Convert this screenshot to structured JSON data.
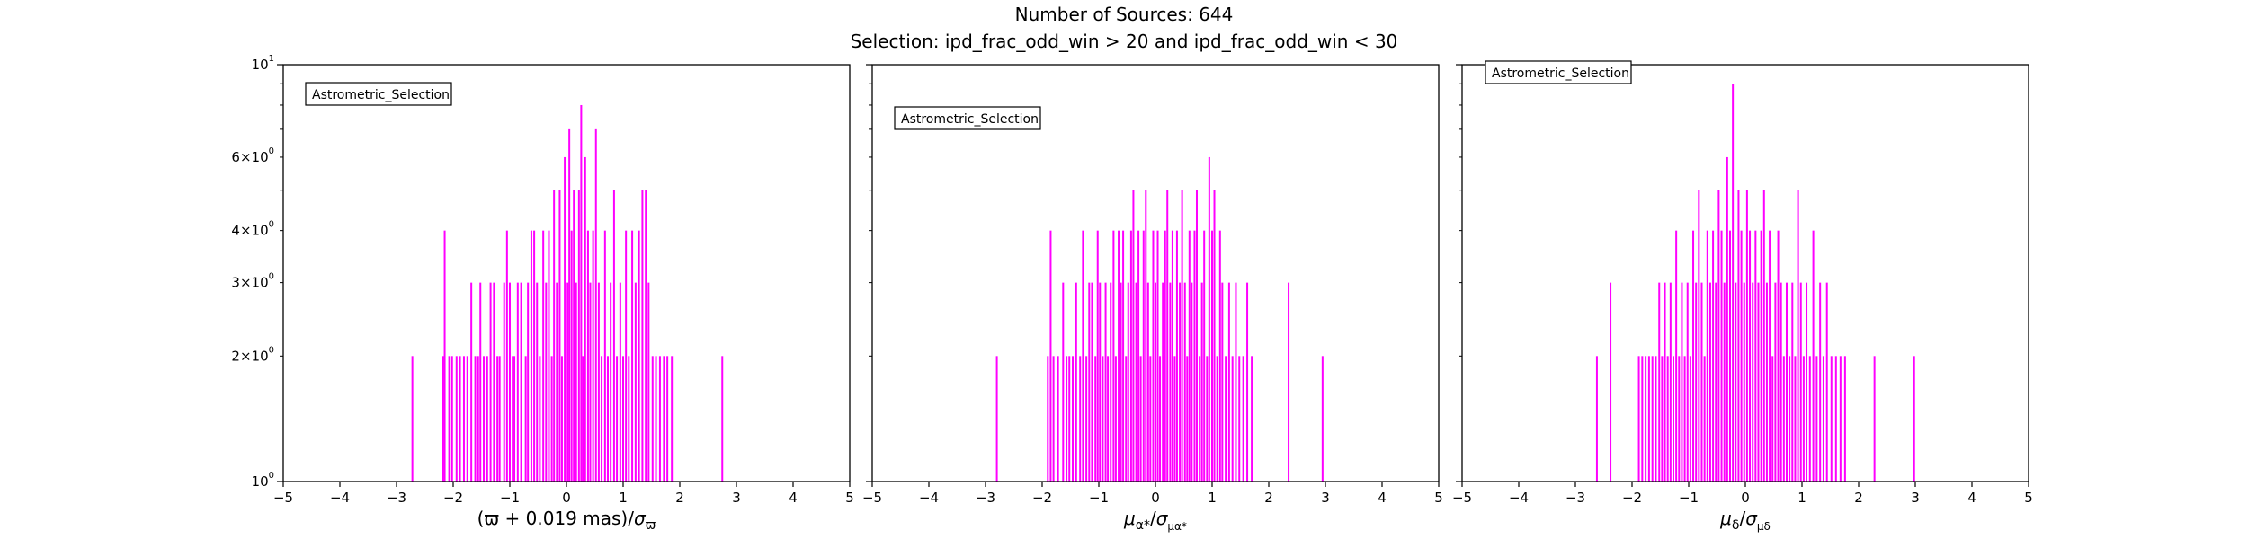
{
  "suptitle": {
    "line1": "Number of Sources: 644",
    "line2": "Selection: ipd_frac_odd_win > 20 and ipd_frac_odd_win < 30"
  },
  "colors": {
    "bars": "#ff00ff",
    "axes": "#000000",
    "background": "#ffffff"
  },
  "chart_data": [
    {
      "type": "bar",
      "panel": "parallax",
      "xlabel": "(ϖ + 0.019 mas)/σϖ",
      "ylabel": "",
      "xlim": [
        -5,
        5
      ],
      "ylim": [
        1,
        10
      ],
      "yscale": "log",
      "legend": {
        "text": "Astrometric_Selection",
        "placement": "upper-left"
      },
      "x_ticks": [
        "−5",
        "−4",
        "−3",
        "−2",
        "−1",
        "0",
        "1",
        "2",
        "3",
        "4",
        "5"
      ],
      "y_ticks": [
        "10^0",
        "2×10^0",
        "3×10^0",
        "4×10^0",
        "6×10^0",
        "10^1"
      ],
      "bars": [
        [
          -2.72,
          2
        ],
        [
          -2.18,
          2
        ],
        [
          -2.15,
          4
        ],
        [
          -2.07,
          2
        ],
        [
          -2.02,
          2
        ],
        [
          -1.94,
          2
        ],
        [
          -1.88,
          2
        ],
        [
          -1.81,
          2
        ],
        [
          -1.75,
          2
        ],
        [
          -1.68,
          3
        ],
        [
          -1.61,
          2
        ],
        [
          -1.56,
          2
        ],
        [
          -1.52,
          3
        ],
        [
          -1.46,
          2
        ],
        [
          -1.4,
          2
        ],
        [
          -1.34,
          3
        ],
        [
          -1.28,
          3
        ],
        [
          -1.22,
          2
        ],
        [
          -1.18,
          2
        ],
        [
          -1.1,
          3
        ],
        [
          -1.05,
          4
        ],
        [
          -1.0,
          3
        ],
        [
          -0.95,
          2
        ],
        [
          -0.92,
          2
        ],
        [
          -0.86,
          3
        ],
        [
          -0.8,
          3
        ],
        [
          -0.72,
          2
        ],
        [
          -0.68,
          3
        ],
        [
          -0.62,
          4
        ],
        [
          -0.57,
          4
        ],
        [
          -0.52,
          3
        ],
        [
          -0.47,
          2
        ],
        [
          -0.41,
          4
        ],
        [
          -0.36,
          3
        ],
        [
          -0.31,
          4
        ],
        [
          -0.26,
          2
        ],
        [
          -0.22,
          5
        ],
        [
          -0.17,
          3
        ],
        [
          -0.12,
          5
        ],
        [
          -0.08,
          2
        ],
        [
          -0.03,
          6
        ],
        [
          0.02,
          3
        ],
        [
          0.05,
          7
        ],
        [
          0.09,
          4
        ],
        [
          0.13,
          5
        ],
        [
          0.17,
          3
        ],
        [
          0.22,
          5
        ],
        [
          0.26,
          8
        ],
        [
          0.29,
          2
        ],
        [
          0.33,
          6
        ],
        [
          0.38,
          4
        ],
        [
          0.42,
          3
        ],
        [
          0.47,
          4
        ],
        [
          0.52,
          7
        ],
        [
          0.57,
          3
        ],
        [
          0.62,
          2
        ],
        [
          0.68,
          4
        ],
        [
          0.73,
          2
        ],
        [
          0.78,
          3
        ],
        [
          0.84,
          5
        ],
        [
          0.89,
          2
        ],
        [
          0.95,
          3
        ],
        [
          1.0,
          2
        ],
        [
          1.05,
          4
        ],
        [
          1.1,
          2
        ],
        [
          1.16,
          4
        ],
        [
          1.22,
          3
        ],
        [
          1.28,
          4
        ],
        [
          1.34,
          5
        ],
        [
          1.4,
          5
        ],
        [
          1.45,
          3
        ],
        [
          1.52,
          2
        ],
        [
          1.58,
          2
        ],
        [
          1.65,
          2
        ],
        [
          1.72,
          2
        ],
        [
          1.78,
          2
        ],
        [
          1.86,
          2
        ],
        [
          2.75,
          2
        ]
      ]
    },
    {
      "type": "bar",
      "panel": "pmra",
      "xlabel": "μα*/σμα*",
      "ylabel": "",
      "xlim": [
        -5,
        5
      ],
      "ylim": [
        1,
        10
      ],
      "yscale": "log",
      "legend": {
        "text": "Astrometric_Selection",
        "placement": "upper-left"
      },
      "x_ticks": [
        "−5",
        "−4",
        "−3",
        "−2",
        "−1",
        "0",
        "1",
        "2",
        "3",
        "4",
        "5"
      ],
      "y_ticks": [],
      "bars": [
        [
          -2.8,
          2
        ],
        [
          -1.9,
          2
        ],
        [
          -1.85,
          4
        ],
        [
          -1.8,
          2
        ],
        [
          -1.72,
          2
        ],
        [
          -1.63,
          3
        ],
        [
          -1.57,
          2
        ],
        [
          -1.52,
          2
        ],
        [
          -1.46,
          2
        ],
        [
          -1.4,
          3
        ],
        [
          -1.33,
          2
        ],
        [
          -1.28,
          4
        ],
        [
          -1.22,
          2
        ],
        [
          -1.17,
          3
        ],
        [
          -1.12,
          3
        ],
        [
          -1.06,
          2
        ],
        [
          -1.02,
          4
        ],
        [
          -0.98,
          3
        ],
        [
          -0.93,
          2
        ],
        [
          -0.88,
          3
        ],
        [
          -0.84,
          2
        ],
        [
          -0.79,
          3
        ],
        [
          -0.74,
          4
        ],
        [
          -0.7,
          2
        ],
        [
          -0.65,
          4
        ],
        [
          -0.61,
          3
        ],
        [
          -0.57,
          4
        ],
        [
          -0.52,
          2
        ],
        [
          -0.48,
          3
        ],
        [
          -0.43,
          4
        ],
        [
          -0.39,
          5
        ],
        [
          -0.34,
          3
        ],
        [
          -0.3,
          4
        ],
        [
          -0.26,
          2
        ],
        [
          -0.21,
          4
        ],
        [
          -0.17,
          5
        ],
        [
          -0.13,
          3
        ],
        [
          -0.09,
          2
        ],
        [
          -0.04,
          4
        ],
        [
          0.0,
          3
        ],
        [
          0.04,
          4
        ],
        [
          0.08,
          2
        ],
        [
          0.13,
          3
        ],
        [
          0.17,
          4
        ],
        [
          0.21,
          5
        ],
        [
          0.26,
          3
        ],
        [
          0.3,
          4
        ],
        [
          0.34,
          2
        ],
        [
          0.38,
          4
        ],
        [
          0.43,
          3
        ],
        [
          0.47,
          5
        ],
        [
          0.52,
          3
        ],
        [
          0.56,
          2
        ],
        [
          0.6,
          4
        ],
        [
          0.64,
          3
        ],
        [
          0.69,
          4
        ],
        [
          0.73,
          5
        ],
        [
          0.78,
          2
        ],
        [
          0.82,
          3
        ],
        [
          0.86,
          4
        ],
        [
          0.91,
          2
        ],
        [
          0.95,
          6
        ],
        [
          1.0,
          4
        ],
        [
          1.04,
          5
        ],
        [
          1.09,
          2
        ],
        [
          1.14,
          4
        ],
        [
          1.18,
          3
        ],
        [
          1.24,
          2
        ],
        [
          1.3,
          3
        ],
        [
          1.36,
          2
        ],
        [
          1.42,
          3
        ],
        [
          1.48,
          2
        ],
        [
          1.55,
          2
        ],
        [
          1.62,
          3
        ],
        [
          1.7,
          2
        ],
        [
          2.35,
          3
        ],
        [
          2.95,
          2
        ]
      ]
    },
    {
      "type": "bar",
      "panel": "pmdec",
      "xlabel": "μδ/σμδ",
      "ylabel": "",
      "xlim": [
        -5,
        5
      ],
      "ylim": [
        1,
        10
      ],
      "yscale": "log",
      "legend": {
        "text": "Astrometric_Selection",
        "placement": "upper-left"
      },
      "x_ticks": [
        "−5",
        "−4",
        "−3",
        "−2",
        "−1",
        "0",
        "1",
        "2",
        "3",
        "4",
        "5"
      ],
      "y_ticks": [],
      "bars": [
        [
          -2.62,
          2
        ],
        [
          -2.38,
          3
        ],
        [
          -1.88,
          2
        ],
        [
          -1.82,
          2
        ],
        [
          -1.76,
          2
        ],
        [
          -1.7,
          2
        ],
        [
          -1.64,
          2
        ],
        [
          -1.58,
          2
        ],
        [
          -1.52,
          3
        ],
        [
          -1.47,
          2
        ],
        [
          -1.42,
          3
        ],
        [
          -1.37,
          2
        ],
        [
          -1.32,
          3
        ],
        [
          -1.27,
          2
        ],
        [
          -1.22,
          4
        ],
        [
          -1.17,
          2
        ],
        [
          -1.12,
          3
        ],
        [
          -1.07,
          2
        ],
        [
          -1.02,
          3
        ],
        [
          -0.97,
          2
        ],
        [
          -0.92,
          4
        ],
        [
          -0.87,
          3
        ],
        [
          -0.82,
          5
        ],
        [
          -0.77,
          3
        ],
        [
          -0.72,
          2
        ],
        [
          -0.67,
          4
        ],
        [
          -0.62,
          3
        ],
        [
          -0.57,
          4
        ],
        [
          -0.52,
          3
        ],
        [
          -0.47,
          5
        ],
        [
          -0.42,
          4
        ],
        [
          -0.37,
          3
        ],
        [
          -0.32,
          6
        ],
        [
          -0.27,
          4
        ],
        [
          -0.22,
          9
        ],
        [
          -0.17,
          3
        ],
        [
          -0.12,
          5
        ],
        [
          -0.07,
          4
        ],
        [
          -0.02,
          3
        ],
        [
          0.03,
          5
        ],
        [
          0.08,
          4
        ],
        [
          0.13,
          3
        ],
        [
          0.18,
          4
        ],
        [
          0.23,
          3
        ],
        [
          0.28,
          4
        ],
        [
          0.33,
          5
        ],
        [
          0.38,
          3
        ],
        [
          0.43,
          4
        ],
        [
          0.48,
          2
        ],
        [
          0.53,
          3
        ],
        [
          0.58,
          4
        ],
        [
          0.63,
          3
        ],
        [
          0.68,
          2
        ],
        [
          0.73,
          3
        ],
        [
          0.78,
          2
        ],
        [
          0.83,
          3
        ],
        [
          0.88,
          2
        ],
        [
          0.93,
          5
        ],
        [
          0.98,
          3
        ],
        [
          1.03,
          2
        ],
        [
          1.08,
          3
        ],
        [
          1.14,
          2
        ],
        [
          1.2,
          4
        ],
        [
          1.26,
          2
        ],
        [
          1.32,
          3
        ],
        [
          1.38,
          2
        ],
        [
          1.44,
          3
        ],
        [
          1.52,
          2
        ],
        [
          1.6,
          2
        ],
        [
          1.68,
          2
        ],
        [
          1.76,
          2
        ],
        [
          2.28,
          2
        ],
        [
          2.98,
          2
        ]
      ]
    }
  ]
}
